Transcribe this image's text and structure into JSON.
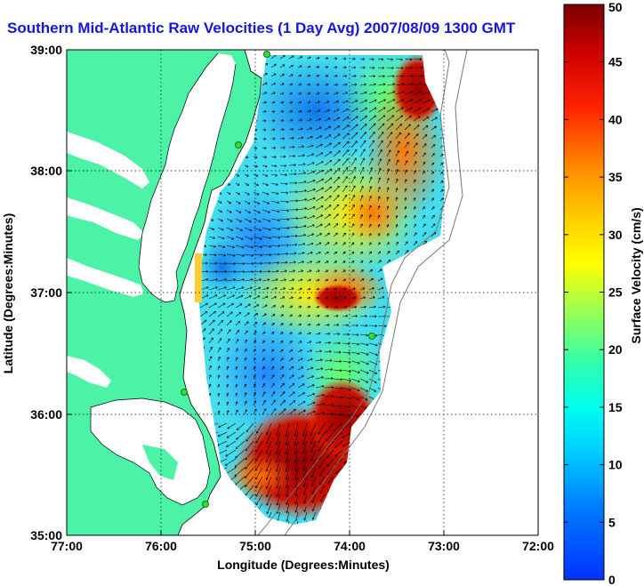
{
  "title": "Southern Mid-Atlantic Raw Velocities (1 Day Avg) 2007/08/09 1300 GMT",
  "map": {
    "xlabel": "Longitude (Degrees:Minutes)",
    "ylabel": "Latitude (Degrees:Minutes)",
    "x_ticks": [
      "77:00",
      "76:00",
      "75:00",
      "74:00",
      "73:00",
      "72:00"
    ],
    "y_ticks": [
      "39:00",
      "38:00",
      "37:00",
      "36:00",
      "35:00"
    ],
    "x_range_deg_west": [
      77,
      72
    ],
    "y_range_deg_north": [
      35,
      39
    ],
    "grid": "dotted",
    "colors": {
      "land": "#4cf2a6",
      "water": "#ffffff",
      "stations": "#33dd33",
      "vectors": "#000000"
    },
    "feature_labels": {
      "land": "land-mass",
      "coast": "coastline",
      "field": "surface-velocity-field",
      "stations": "hf-radar-stations"
    }
  },
  "colorbar": {
    "label": "Surface Velocity (cm/s)",
    "ticks": [
      "0",
      "5",
      "10",
      "15",
      "20",
      "25",
      "30",
      "35",
      "40",
      "45",
      "50"
    ],
    "range": [
      0,
      50
    ],
    "colormap": "jet"
  }
}
